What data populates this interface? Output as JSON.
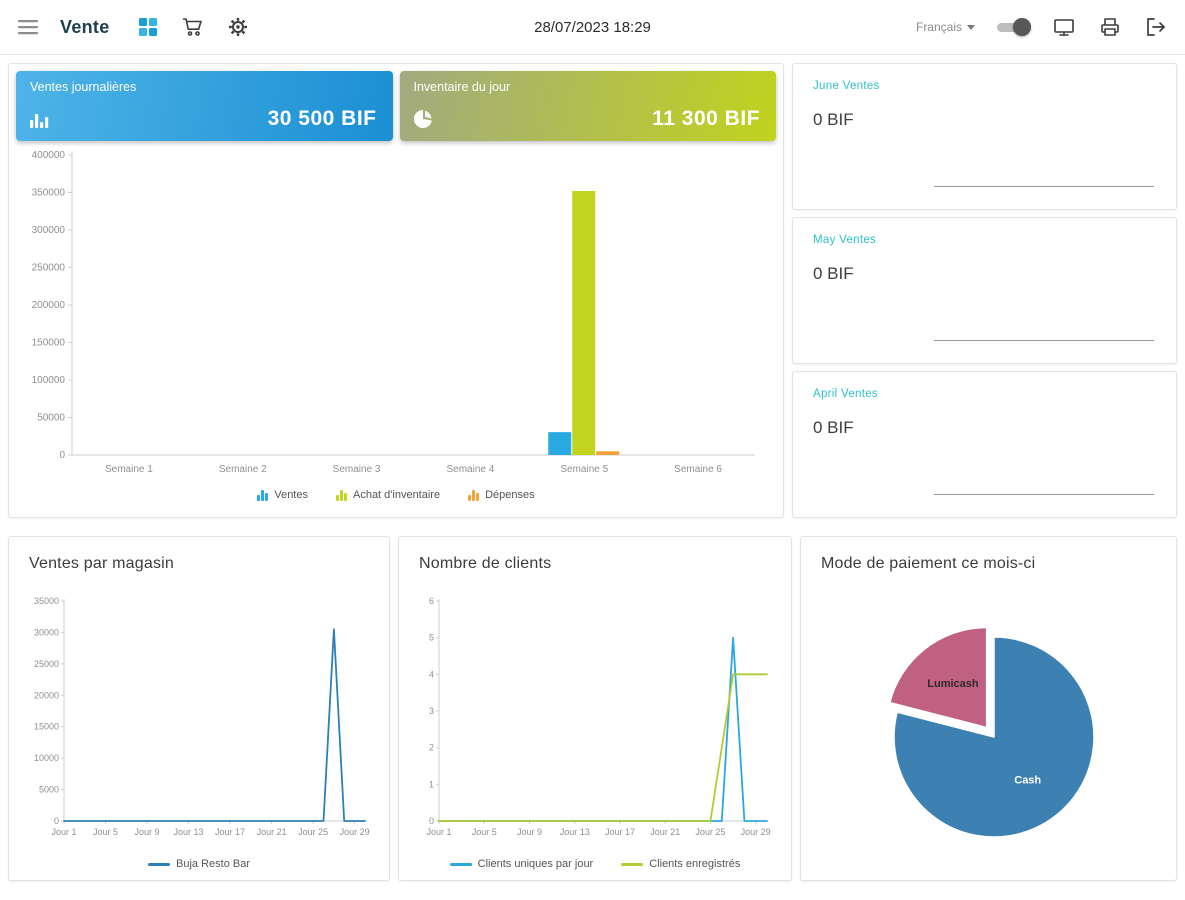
{
  "header": {
    "app_title": "Vente",
    "datetime": "28/07/2023 18:29",
    "language": {
      "label": "Français"
    },
    "icons": [
      "menu-icon",
      "apps-grid-icon",
      "cart-icon",
      "settings-gear-icon",
      "monitor-icon",
      "printer-icon",
      "logout-icon"
    ]
  },
  "summary_cards": {
    "daily_sales": {
      "label": "Ventes journalières",
      "value": "30 500 BIF",
      "gradient": [
        "#4fb4e8",
        "#1b8fd3"
      ],
      "icon": "bar-chart-icon"
    },
    "daily_inventory": {
      "label": "Inventaire du jour",
      "value": "11 300 BIF",
      "gradient": [
        "#a2aa80",
        "#c0d31e"
      ],
      "icon": "pie-chart-icon"
    }
  },
  "monthly_stats": [
    {
      "label": "June Ventes",
      "value": "0 BIF"
    },
    {
      "label": "May Ventes",
      "value": "0 BIF"
    },
    {
      "label": "April Ventes",
      "value": "0 BIF"
    }
  ],
  "sections": {
    "sales_by_store": "Ventes par magasin",
    "customer_count": "Nombre de clients",
    "payment_mode": "Mode de paiement ce mois-ci"
  },
  "colors": {
    "stat_label_teal": "#2fc0c8",
    "axis_line": "#cfcfcf",
    "axis_text": "#8f8f8f"
  },
  "chart_data": [
    {
      "id": "weekly-overview",
      "type": "bar",
      "categories": [
        "Semaine 1",
        "Semaine 2",
        "Semaine 3",
        "Semaine 4",
        "Semaine 5",
        "Semaine 6"
      ],
      "series": [
        {
          "name": "Ventes",
          "color": "#29abe2",
          "values": [
            0,
            0,
            0,
            0,
            30500,
            0
          ]
        },
        {
          "name": "Achat d'inventaire",
          "color": "#c3d41e",
          "values": [
            0,
            0,
            0,
            0,
            352000,
            0
          ]
        },
        {
          "name": "Dépenses",
          "color": "#f2a33c",
          "values": [
            0,
            0,
            0,
            0,
            5000,
            0
          ]
        }
      ],
      "ylim": [
        0,
        400000
      ],
      "ytick_step": 50000,
      "grid": false,
      "legend_position": "bottom"
    },
    {
      "id": "sales-by-store",
      "type": "line",
      "x_unit": "day",
      "xticks": [
        {
          "day": 1,
          "label": "Jour 1"
        },
        {
          "day": 5,
          "label": "Jour 5"
        },
        {
          "day": 9,
          "label": "Jour 9"
        },
        {
          "day": 13,
          "label": "Jour 13"
        },
        {
          "day": 17,
          "label": "Jour 17"
        },
        {
          "day": 21,
          "label": "Jour 21"
        },
        {
          "day": 25,
          "label": "Jour 25"
        },
        {
          "day": 29,
          "label": "Jour 29"
        }
      ],
      "series": [
        {
          "name": "Buja Resto Bar",
          "color": "#2e7fb8",
          "values": [
            0,
            0,
            0,
            0,
            0,
            0,
            0,
            0,
            0,
            0,
            0,
            0,
            0,
            0,
            0,
            0,
            0,
            0,
            0,
            0,
            0,
            0,
            0,
            0,
            0,
            0,
            30500,
            0,
            0,
            0
          ]
        }
      ],
      "ylim": [
        0,
        35000
      ],
      "ytick_step": 5000,
      "grid": false,
      "legend_position": "bottom"
    },
    {
      "id": "customer-count",
      "type": "line",
      "x_unit": "day",
      "xticks": [
        {
          "day": 1,
          "label": "Jour 1"
        },
        {
          "day": 5,
          "label": "Jour 5"
        },
        {
          "day": 9,
          "label": "Jour 9"
        },
        {
          "day": 13,
          "label": "Jour 13"
        },
        {
          "day": 17,
          "label": "Jour 17"
        },
        {
          "day": 21,
          "label": "Jour 21"
        },
        {
          "day": 25,
          "label": "Jour 25"
        },
        {
          "day": 29,
          "label": "Jour 29"
        }
      ],
      "series": [
        {
          "name": "Clients uniques par jour",
          "color": "#29a8e0",
          "values": [
            0,
            0,
            0,
            0,
            0,
            0,
            0,
            0,
            0,
            0,
            0,
            0,
            0,
            0,
            0,
            0,
            0,
            0,
            0,
            0,
            0,
            0,
            0,
            0,
            0,
            0,
            5,
            0,
            0,
            0
          ]
        },
        {
          "name": "Clients enregistrés",
          "color": "#b3cc33",
          "values": [
            0,
            0,
            0,
            0,
            0,
            0,
            0,
            0,
            0,
            0,
            0,
            0,
            0,
            0,
            0,
            0,
            0,
            0,
            0,
            0,
            0,
            0,
            0,
            0,
            0,
            2,
            4,
            4,
            4,
            4
          ]
        }
      ],
      "ylim": [
        0,
        6
      ],
      "ytick_step": 1,
      "grid": false,
      "legend_position": "bottom"
    },
    {
      "id": "payment-mode",
      "type": "pie",
      "unit": "percent",
      "start_angle_deg": 0,
      "slices": [
        {
          "label": "Cash",
          "value": 79,
          "color": "#3d80b2",
          "label_color": "#ffffff",
          "exploded": false
        },
        {
          "label": "Lumicash",
          "value": 21,
          "color": "#c06182",
          "label_color": "#2b2b2b",
          "exploded": true
        }
      ]
    }
  ]
}
